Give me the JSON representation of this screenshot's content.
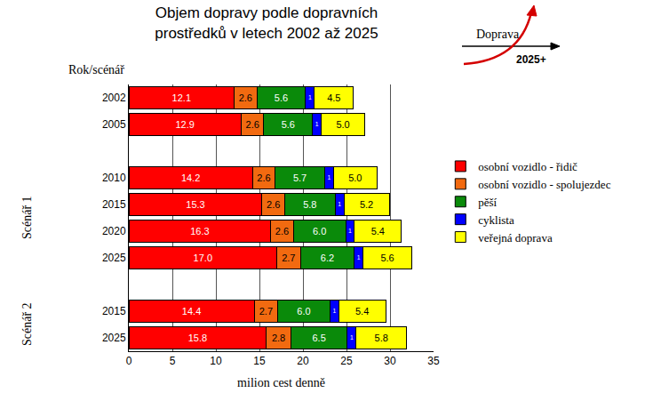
{
  "chart_data": {
    "type": "bar",
    "orientation": "horizontal",
    "stacked": true,
    "data_labels": true,
    "grid": true,
    "legend": "right",
    "title": "Objem dopravy podle dopravních\nprostředků v letech 2002 až 2025",
    "x_label": "milion cest denně",
    "y_label": "Rok/scénář",
    "xlim": [
      0,
      35
    ],
    "xticks": [
      0,
      5,
      10,
      15,
      20,
      25,
      30,
      35
    ],
    "categories": [
      "2002",
      "2005",
      null,
      "2010",
      "2015",
      "2020",
      "2025",
      null,
      "2015",
      "2025"
    ],
    "series": [
      {
        "name": "osobní vozidlo - řidič",
        "color": "#ff0000",
        "values": [
          12.1,
          12.9,
          null,
          14.2,
          15.3,
          16.3,
          17.0,
          null,
          14.4,
          15.8
        ],
        "value_labels": [
          "12.1",
          "12.9",
          null,
          "14.2",
          "15.3",
          "16.3",
          "17.0",
          null,
          "14.4",
          "15.8"
        ]
      },
      {
        "name": "osobní vozidlo - spolujezdec",
        "color": "#f26a10",
        "values": [
          2.6,
          2.6,
          null,
          2.6,
          2.6,
          2.6,
          2.7,
          null,
          2.7,
          2.8
        ],
        "value_labels": [
          "2.6",
          "2.6",
          null,
          "2.6",
          "2.6",
          "2.6",
          "2.7",
          null,
          "2.7",
          "2.8"
        ]
      },
      {
        "name": "pěší",
        "color": "#0a8a0a",
        "values": [
          5.6,
          5.6,
          null,
          5.7,
          5.8,
          6.0,
          6.2,
          null,
          6.0,
          6.5
        ],
        "value_labels": [
          "5.6",
          "5.6",
          null,
          "5.7",
          "5.8",
          "6.0",
          "6.2",
          null,
          "6.0",
          "6.5"
        ]
      },
      {
        "name": "cyklista",
        "color": "#0000ff",
        "values": [
          1,
          1,
          null,
          1,
          1,
          1,
          1,
          null,
          1,
          1
        ],
        "value_labels": [
          "1",
          "1",
          null,
          "1",
          "1",
          "1",
          "1",
          null,
          "1",
          "1"
        ]
      },
      {
        "name": "veřejná doprava",
        "color": "#ffff00",
        "values": [
          4.5,
          5.0,
          null,
          5.0,
          5.2,
          5.4,
          5.6,
          null,
          5.4,
          5.8
        ],
        "value_labels": [
          "4.5",
          "5.0",
          null,
          "5.0",
          "5.2",
          "5.4",
          "5.6",
          null,
          "5.4",
          "5.8"
        ]
      }
    ],
    "annotations": [
      {
        "text": "Doprava"
      },
      {
        "text": "2025+"
      },
      {
        "text": "Scénář 1",
        "rows": [
          3,
          6
        ]
      },
      {
        "text": "Scénář 2",
        "rows": [
          8,
          9
        ]
      }
    ]
  }
}
